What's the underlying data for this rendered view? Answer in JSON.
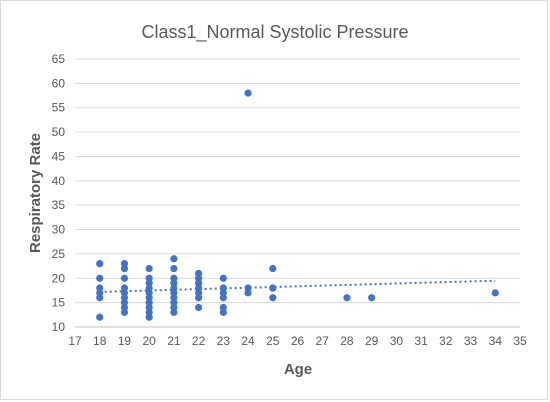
{
  "chart_data": {
    "type": "scatter",
    "title": "Class1_Normal Systolic Pressure",
    "xlabel": "Age",
    "ylabel": "Respiratory Rate",
    "xlim": [
      17,
      35
    ],
    "ylim": [
      10,
      65
    ],
    "xticks": [
      17,
      18,
      19,
      20,
      21,
      22,
      23,
      24,
      25,
      26,
      27,
      28,
      29,
      30,
      31,
      32,
      33,
      34,
      35
    ],
    "yticks": [
      10,
      15,
      20,
      25,
      30,
      35,
      40,
      45,
      50,
      55,
      60,
      65
    ],
    "grid": true,
    "legend": "none",
    "points": [
      [
        18,
        12
      ],
      [
        18,
        16
      ],
      [
        18,
        17
      ],
      [
        18,
        18
      ],
      [
        18,
        20
      ],
      [
        18,
        23
      ],
      [
        19,
        13
      ],
      [
        19,
        14
      ],
      [
        19,
        15
      ],
      [
        19,
        16
      ],
      [
        19,
        17
      ],
      [
        19,
        18
      ],
      [
        19,
        20
      ],
      [
        19,
        22
      ],
      [
        19,
        23
      ],
      [
        20,
        12
      ],
      [
        20,
        13
      ],
      [
        20,
        14
      ],
      [
        20,
        15
      ],
      [
        20,
        16
      ],
      [
        20,
        17
      ],
      [
        20,
        18
      ],
      [
        20,
        19
      ],
      [
        20,
        20
      ],
      [
        20,
        22
      ],
      [
        21,
        13
      ],
      [
        21,
        14
      ],
      [
        21,
        15
      ],
      [
        21,
        16
      ],
      [
        21,
        17
      ],
      [
        21,
        18
      ],
      [
        21,
        19
      ],
      [
        21,
        20
      ],
      [
        21,
        22
      ],
      [
        21,
        24
      ],
      [
        22,
        14
      ],
      [
        22,
        16
      ],
      [
        22,
        17
      ],
      [
        22,
        18
      ],
      [
        22,
        19
      ],
      [
        22,
        20
      ],
      [
        22,
        21
      ],
      [
        23,
        13
      ],
      [
        23,
        14
      ],
      [
        23,
        16
      ],
      [
        23,
        17
      ],
      [
        23,
        18
      ],
      [
        23,
        20
      ],
      [
        24,
        17
      ],
      [
        24,
        18
      ],
      [
        24,
        58
      ],
      [
        25,
        16
      ],
      [
        25,
        18
      ],
      [
        25,
        22
      ],
      [
        28,
        16
      ],
      [
        29,
        16
      ],
      [
        34,
        17
      ]
    ],
    "trendline": {
      "type": "linear",
      "style": "dotted",
      "x": [
        18,
        34
      ],
      "y": [
        17.2,
        19.5
      ]
    },
    "colors": {
      "marker": "#4472c4",
      "trendline": "#4472c4",
      "grid": "#d9d9d9",
      "text": "#595959"
    }
  }
}
